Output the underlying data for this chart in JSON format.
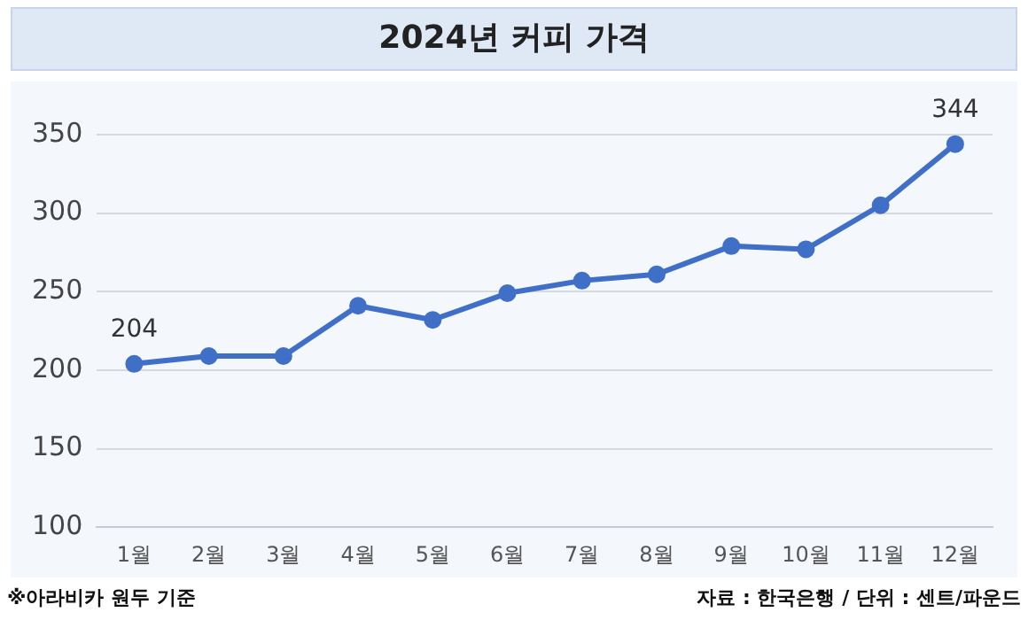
{
  "chart_data": {
    "type": "line",
    "title": "2024년 커피 가격",
    "categories": [
      "1월",
      "2월",
      "3월",
      "4월",
      "5월",
      "6월",
      "7월",
      "8월",
      "9월",
      "10월",
      "11월",
      "12월"
    ],
    "series": [
      {
        "color": "#3f6fc6",
        "values": [
          204,
          209,
          209,
          241,
          232,
          249,
          257,
          261,
          279,
          277,
          305,
          344
        ],
        "value_labels": [
          "204",
          null,
          null,
          null,
          null,
          null,
          null,
          null,
          null,
          null,
          null,
          "344"
        ]
      }
    ],
    "ylim": [
      100,
      350
    ],
    "yticks": [
      100,
      150,
      200,
      250,
      300,
      350
    ],
    "grid": "y",
    "legend": false,
    "marker": "circle",
    "line_style": "solid",
    "annotations": [
      "※아라비카 원두 기준",
      "자료 : 한국은행 / 단위 : 센트/파운드"
    ]
  }
}
